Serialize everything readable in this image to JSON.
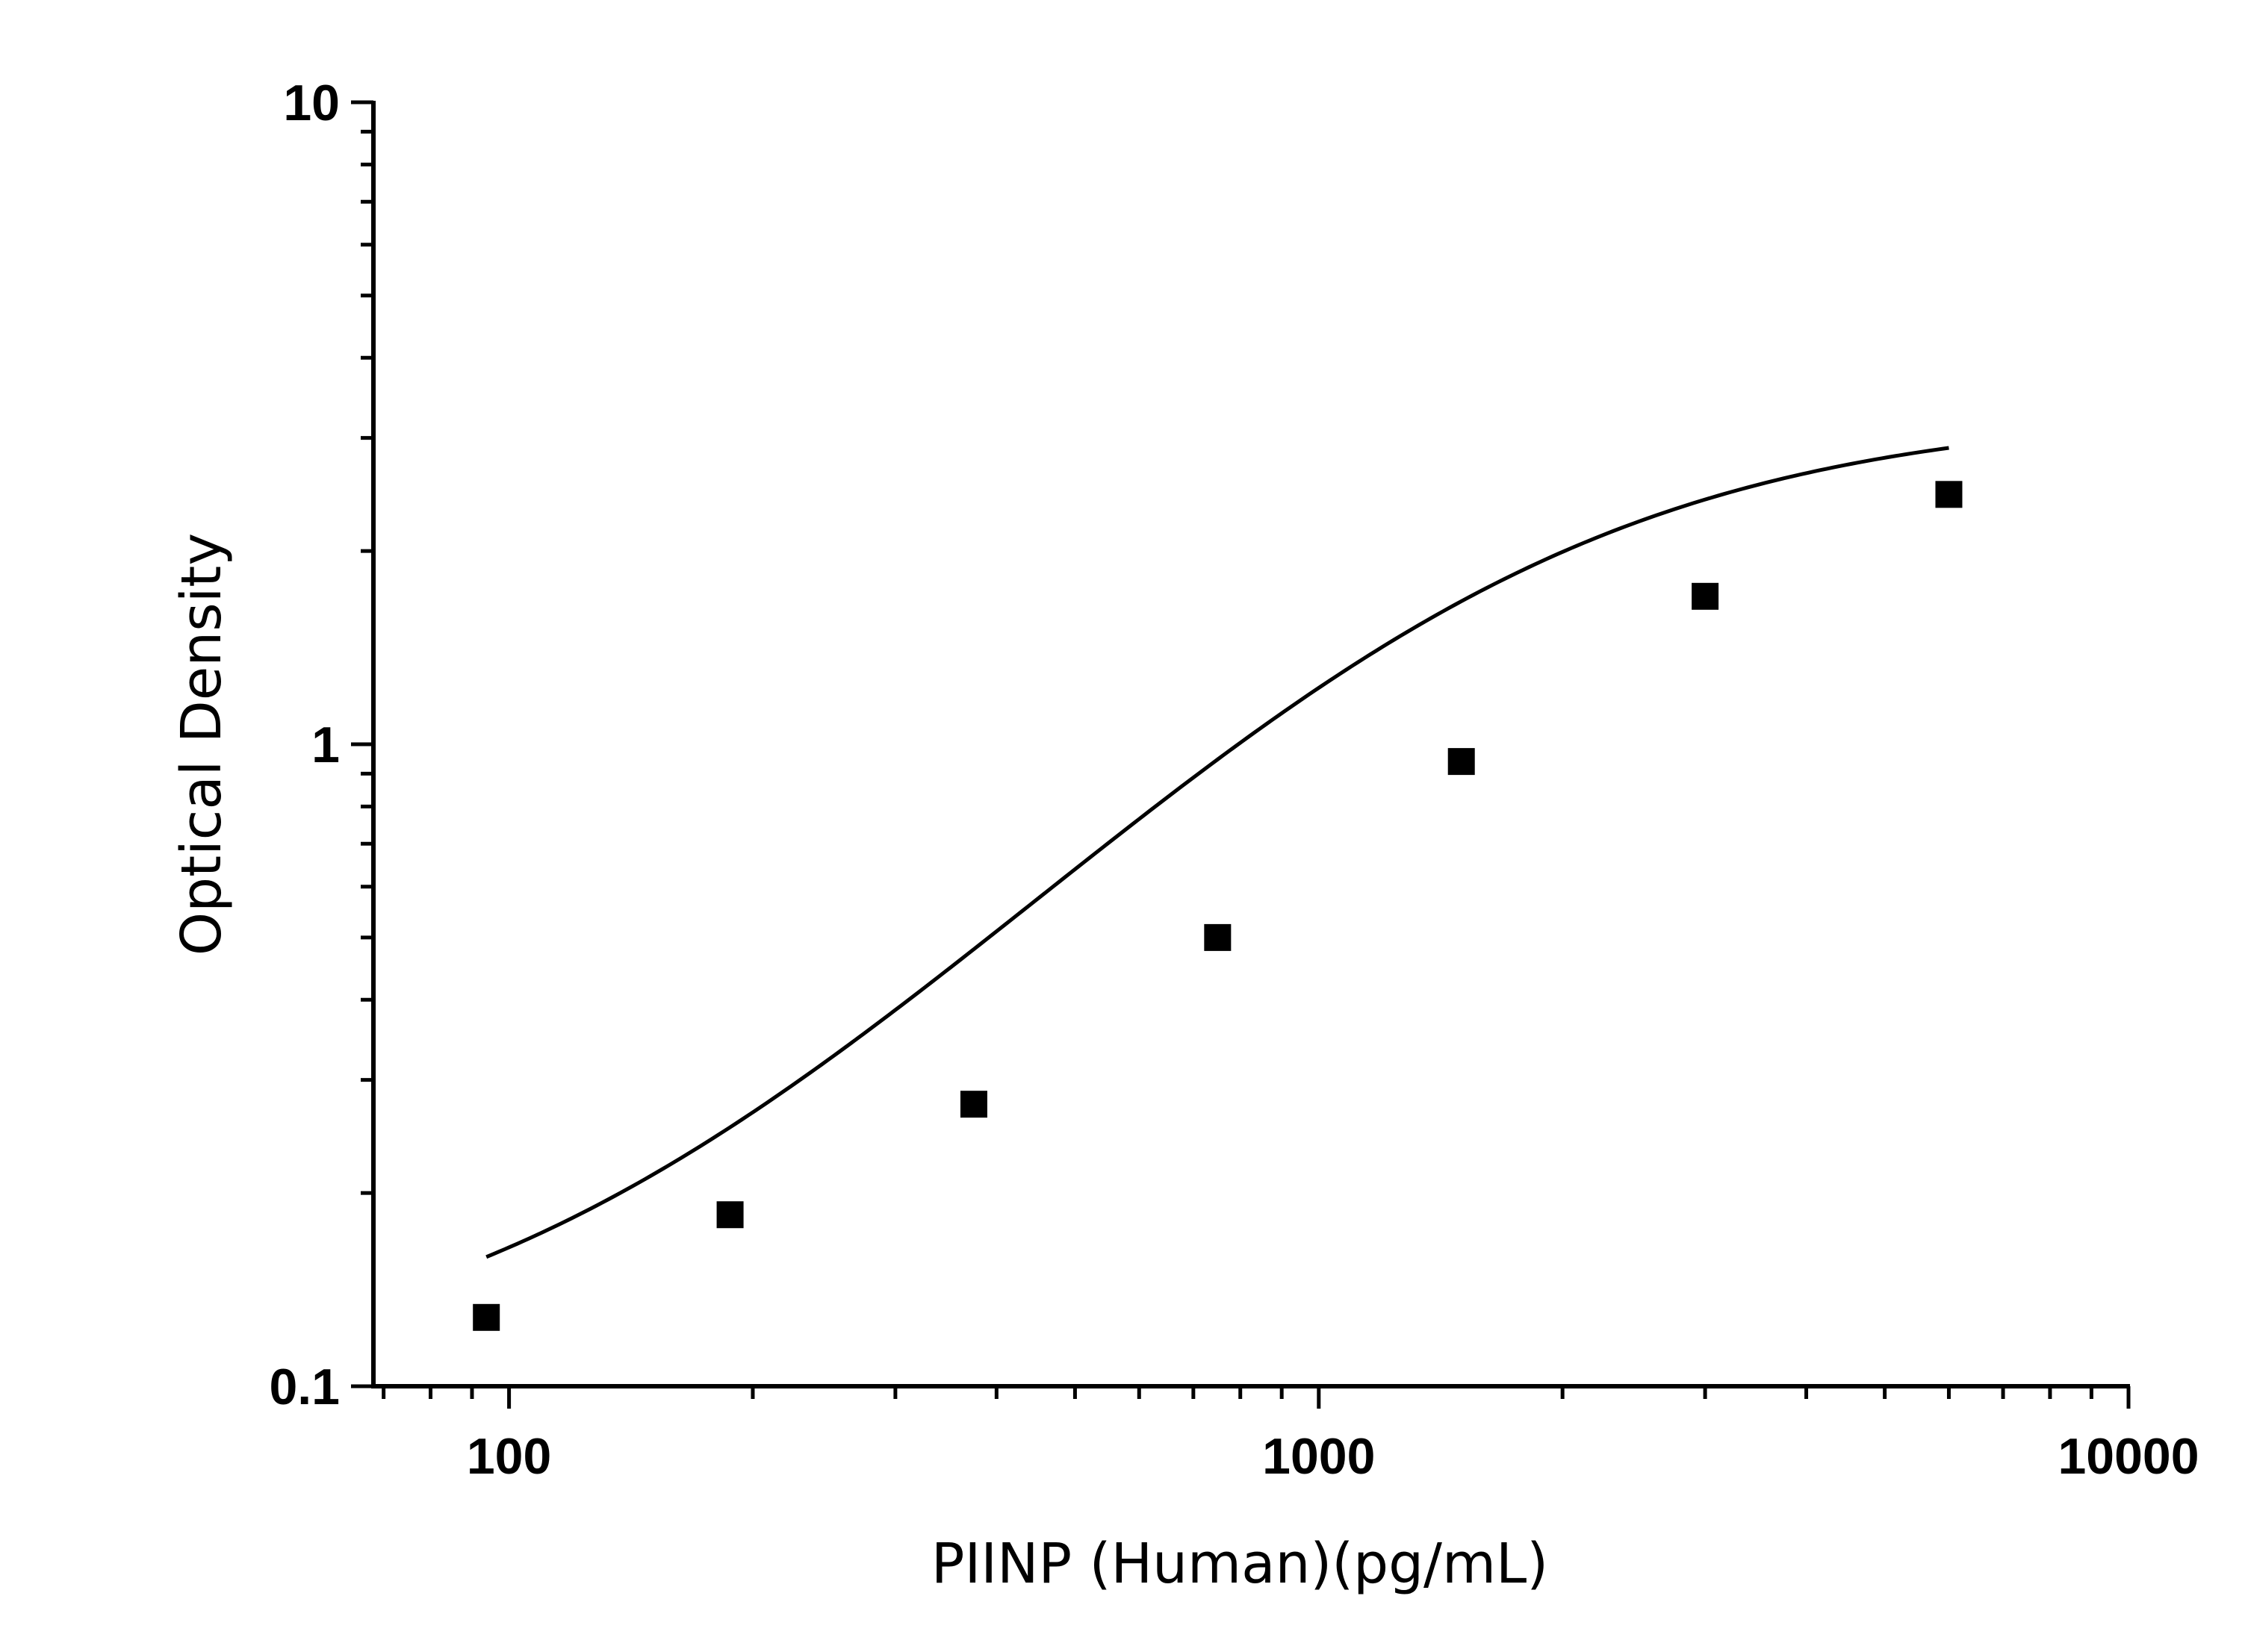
{
  "chart_data": {
    "type": "scatter",
    "title": "",
    "xlabel": "PIINP (Human)(pg/mL)",
    "ylabel": "Optical Density",
    "x_scale": "log",
    "y_scale": "log",
    "xlim": [
      68,
      10000
    ],
    "ylim": [
      0.1,
      10
    ],
    "x_ticks": [
      {
        "value": 100,
        "label": "100"
      },
      {
        "value": 1000,
        "label": "1000"
      },
      {
        "value": 10000,
        "label": "10000"
      }
    ],
    "y_ticks": [
      {
        "value": 0.1,
        "label": "0.1"
      },
      {
        "value": 1,
        "label": "1"
      },
      {
        "value": 10,
        "label": "10"
      }
    ],
    "grid": false,
    "legend": "none",
    "series": [
      {
        "marker": "square",
        "color": "#000000",
        "points": [
          {
            "x": 93.75,
            "y": 0.128
          },
          {
            "x": 187.5,
            "y": 0.185
          },
          {
            "x": 375,
            "y": 0.275
          },
          {
            "x": 750,
            "y": 0.5
          },
          {
            "x": 1500,
            "y": 0.94
          },
          {
            "x": 3000,
            "y": 1.7
          },
          {
            "x": 6000,
            "y": 2.45
          }
        ]
      }
    ],
    "fit_curve": {
      "type": "4PL",
      "color": "#000000",
      "A": 0.1,
      "B": 1.42,
      "C": 1540,
      "D": 3.3,
      "x_range": [
        93.75,
        6000
      ]
    }
  }
}
